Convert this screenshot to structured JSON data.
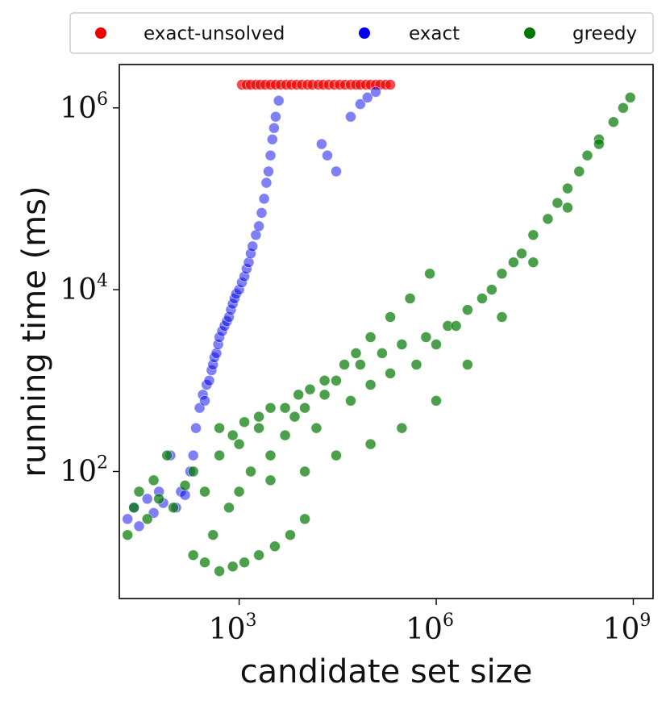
{
  "chart_data": {
    "type": "scatter",
    "xlabel": "candidate set size",
    "ylabel": "running time (ms)",
    "x_scale": "log",
    "y_scale": "log",
    "xlim": [
      15,
      2000000000
    ],
    "ylim": [
      4,
      3000000
    ],
    "x_ticks": [
      {
        "value": 1000,
        "base": "10",
        "exp": "3"
      },
      {
        "value": 1000000,
        "base": "10",
        "exp": "6"
      },
      {
        "value": 1000000000,
        "base": "10",
        "exp": "9"
      }
    ],
    "y_ticks": [
      {
        "value": 100,
        "base": "10",
        "exp": "2"
      },
      {
        "value": 10000,
        "base": "10",
        "exp": "4"
      },
      {
        "value": 1000000,
        "base": "10",
        "exp": "6"
      }
    ],
    "grid": false,
    "legend_position": "top, outside, horizontal",
    "legend": [
      {
        "label": "exact-unsolved",
        "color": "#ee0000"
      },
      {
        "label": "exact",
        "color": "#0000ee"
      },
      {
        "label": "greedy",
        "color": "#007700"
      }
    ],
    "series": [
      {
        "name": "exact-unsolved",
        "color": "#ee0000",
        "x": [
          1100,
          1300,
          1500,
          1800,
          2100,
          2500,
          3000,
          3600,
          4300,
          5200,
          6200,
          7500,
          9000,
          11000,
          13000,
          16000,
          19000,
          23000,
          28000,
          34000,
          41000,
          50000,
          60000,
          70000,
          85000,
          100000,
          120000,
          140000,
          170000,
          200000
        ],
        "y": [
          1800000,
          1800000,
          1800000,
          1800000,
          1800000,
          1800000,
          1800000,
          1800000,
          1800000,
          1800000,
          1800000,
          1800000,
          1800000,
          1800000,
          1800000,
          1800000,
          1800000,
          1800000,
          1800000,
          1800000,
          1800000,
          1800000,
          1800000,
          1800000,
          1800000,
          1800000,
          1800000,
          1800000,
          1800000,
          1800000
        ]
      },
      {
        "name": "exact",
        "color": "#0000ee",
        "x": [
          20,
          25,
          30,
          40,
          50,
          60,
          70,
          90,
          110,
          130,
          150,
          180,
          200,
          220,
          250,
          280,
          300,
          320,
          350,
          380,
          400,
          420,
          450,
          480,
          500,
          550,
          600,
          650,
          700,
          750,
          800,
          850,
          900,
          1000,
          1100,
          1200,
          1300,
          1400,
          1500,
          1600,
          1800,
          2000,
          2200,
          2400,
          2600,
          2800,
          3000,
          3200,
          3400,
          3600,
          4000,
          18000,
          22000,
          30000,
          50000,
          70000,
          90000,
          120000
        ],
        "y": [
          30,
          40,
          25,
          50,
          35,
          60,
          45,
          150,
          40,
          60,
          55,
          100,
          150,
          300,
          500,
          700,
          600,
          900,
          1000,
          1300,
          1500,
          1800,
          2000,
          2500,
          3000,
          3500,
          4000,
          4500,
          5000,
          6000,
          7000,
          8000,
          9000,
          10000,
          12000,
          14000,
          17000,
          20000,
          25000,
          30000,
          40000,
          50000,
          70000,
          100000,
          150000,
          200000,
          300000,
          450000,
          600000,
          800000,
          1200000,
          400000,
          300000,
          200000,
          800000,
          1100000,
          1300000,
          1500000
        ]
      },
      {
        "name": "greedy",
        "color": "#007700",
        "x": [
          20,
          25,
          30,
          40,
          50,
          60,
          80,
          100,
          150,
          200,
          300,
          400,
          500,
          700,
          1000,
          1500,
          2000,
          3000,
          5000,
          7000,
          10000,
          15000,
          20000,
          30000,
          50000,
          70000,
          100000,
          150000,
          200000,
          300000,
          500000,
          700000,
          1000000,
          1500000,
          2000000,
          3000000,
          5000000,
          7000000,
          10000000,
          15000000,
          20000000,
          30000000,
          50000000,
          70000000,
          100000000,
          150000000,
          200000000,
          300000000,
          500000000,
          700000000,
          900000000,
          200,
          300,
          500,
          800,
          1200,
          2000,
          3500,
          6000,
          10000,
          500,
          800,
          1200,
          2000,
          3000,
          5000,
          8000,
          12000,
          20000,
          40000,
          60000,
          100000,
          200000,
          400000,
          800000,
          1000,
          3000,
          10000,
          30000,
          100000,
          300000,
          1000000,
          3000000,
          10000000,
          30000000,
          100000000,
          300000000
        ],
        "y": [
          20,
          40,
          60,
          30,
          80,
          50,
          150,
          40,
          70,
          100,
          60,
          20,
          150,
          40,
          200,
          100,
          300,
          150,
          250,
          400,
          500,
          300,
          700,
          1000,
          600,
          1500,
          900,
          2000,
          1200,
          2500,
          1500,
          3000,
          2500,
          4000,
          4000,
          6000,
          8000,
          10000,
          15000,
          20000,
          25000,
          40000,
          60000,
          90000,
          130000,
          200000,
          300000,
          450000,
          700000,
          1000000,
          1300000,
          12,
          10,
          8,
          9,
          10,
          12,
          15,
          20,
          30,
          300,
          250,
          350,
          400,
          500,
          500,
          700,
          800,
          1000,
          1500,
          2000,
          3000,
          5000,
          8000,
          15000,
          60,
          80,
          100,
          150,
          200,
          300,
          600,
          1500,
          5000,
          20000,
          80000,
          400000
        ]
      }
    ]
  }
}
